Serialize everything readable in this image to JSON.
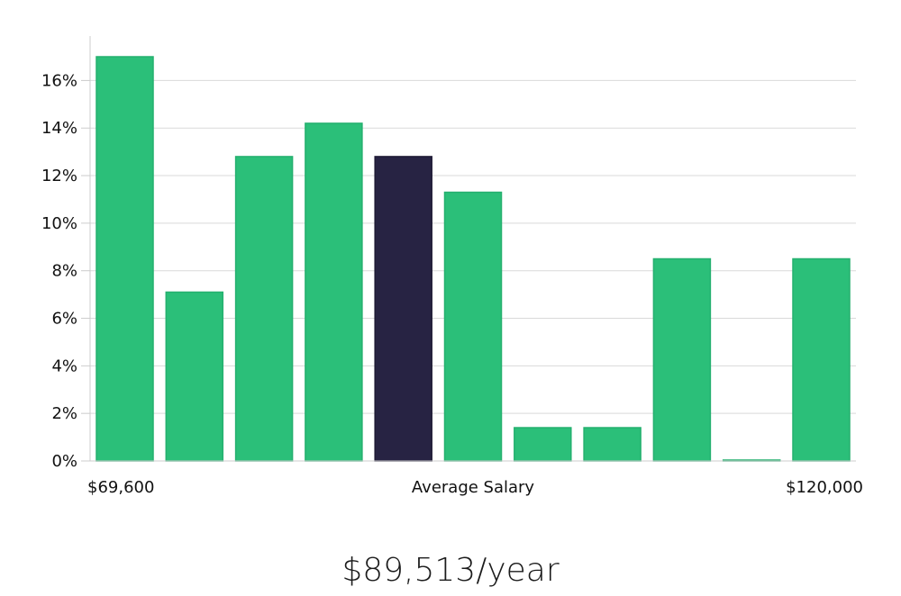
{
  "chart_data": {
    "type": "bar",
    "categories": [
      "1",
      "2",
      "3",
      "4",
      "5",
      "6",
      "7",
      "8",
      "9",
      "10",
      "11"
    ],
    "values": [
      17.0,
      7.1,
      12.8,
      14.2,
      12.8,
      11.3,
      1.4,
      1.4,
      8.5,
      0.0,
      8.5
    ],
    "highlight_index": 4,
    "ylim": [
      0,
      17
    ],
    "yticks": [
      0,
      2,
      4,
      6,
      8,
      10,
      12,
      14,
      16
    ],
    "ytick_format": "%",
    "x_left_label": "$69,600",
    "x_center_label": "Average Salary",
    "x_right_label": "$120,000",
    "grid": true,
    "colors": {
      "bar": "#2bbf79",
      "bar_edge": "#25b06f",
      "highlight": "#272343",
      "grid": "#d9d9d9",
      "text": "#111111"
    }
  },
  "summary": {
    "salary": "$89,513/year"
  }
}
